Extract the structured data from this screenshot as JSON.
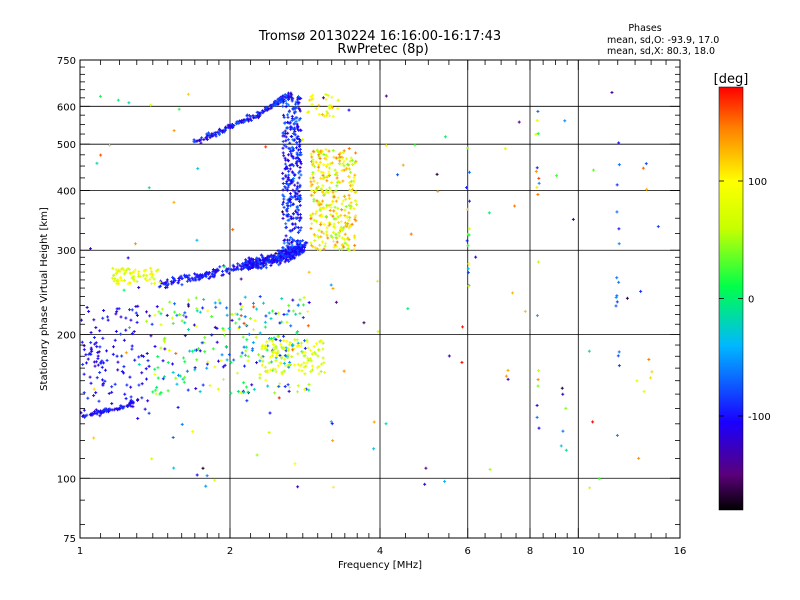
{
  "chart_data": {
    "type": "scatter",
    "title": "Tromsø 20130224 16:16:00-16:17:43",
    "subtitle": "RwPretec (8p)",
    "xlabel": "Frequency [MHz]",
    "ylabel": "Stationary phase Virtual Height [km]",
    "x_scale": "log",
    "y_scale": "log",
    "xlim": [
      1,
      16
    ],
    "ylim": [
      75,
      750
    ],
    "x_tick_labels": [
      "1",
      "2",
      "4",
      "6",
      "8",
      "10",
      "16"
    ],
    "x_ticks": [
      1,
      2,
      4,
      6,
      8,
      10,
      16
    ],
    "y_tick_labels": [
      "75",
      "100",
      "200",
      "300",
      "400",
      "500",
      "600",
      "750"
    ],
    "y_ticks": [
      75,
      100,
      200,
      300,
      400,
      500,
      600,
      750
    ],
    "x_minor_ticks": [
      1.1,
      1.2,
      1.3,
      1.4,
      1.5,
      1.6,
      1.7,
      1.8,
      1.9,
      2.2,
      2.4,
      2.6,
      2.8,
      3,
      3.2,
      3.4,
      3.6,
      3.8,
      4.5,
      5,
      5.5,
      6.5,
      7,
      7.5,
      8.5,
      9,
      9.5,
      11,
      12,
      13,
      14,
      15
    ],
    "y_minor_ticks": [
      80,
      90,
      110,
      120,
      130,
      140,
      150,
      160,
      170,
      180,
      190,
      210,
      220,
      230,
      240,
      250,
      260,
      270,
      280,
      290,
      325,
      350,
      375,
      425,
      450,
      475,
      525,
      550,
      575,
      625,
      650,
      675,
      700,
      725
    ],
    "grid": true,
    "grid_x": [
      2,
      4,
      6,
      8,
      10
    ],
    "grid_y": [
      100,
      200,
      300,
      400,
      500,
      600
    ],
    "stats": {
      "header": "Phases",
      "line1": "mean, sd,O: -93.9, 17.0",
      "line2": "mean, sd,X:  80.3, 18.0"
    },
    "colorbar": {
      "label": "[deg]",
      "range": [
        -180,
        180
      ],
      "tick_values": [
        -100,
        0,
        100
      ],
      "tick_labels": [
        "-100",
        "0",
        "100"
      ],
      "colormap": [
        "#000000",
        "#5a007a",
        "#1a00ff",
        "#00b8ff",
        "#00ff4a",
        "#c8ff00",
        "#ffff00",
        "#ff8000",
        "#ff0000"
      ],
      "colormap_stops": [
        -180,
        -150,
        -105,
        -40,
        10,
        60,
        100,
        145,
        180
      ]
    },
    "series": [
      {
        "region": "o-mode F2 trace",
        "mode": "curve",
        "x": [
          2.15,
          2.3,
          2.5,
          2.62,
          2.72,
          2.8
        ],
        "y": [
          280,
          283,
          290,
          295,
          300,
          305
        ],
        "x_spread": 0.03,
        "y_spread": 0.04,
        "count": 420,
        "phase_range": [
          -120,
          -75
        ]
      },
      {
        "region": "o-mode steep trace",
        "mode": "box",
        "xlim": [
          2.55,
          2.78
        ],
        "ylim": [
          300,
          630
        ],
        "count": 320,
        "phase_range": [
          -125,
          -60
        ]
      },
      {
        "region": "o-mode low F trace",
        "mode": "curve",
        "x": [
          1.45,
          1.65,
          1.85,
          2.05,
          2.25
        ],
        "y": [
          255,
          262,
          268,
          276,
          282
        ],
        "x_spread": 0.03,
        "y_spread": 0.03,
        "count": 160,
        "phase_range": [
          -120,
          -80
        ]
      },
      {
        "region": "o-mode top arc",
        "mode": "curve",
        "x": [
          1.7,
          1.9,
          2.1,
          2.3,
          2.5,
          2.65
        ],
        "y": [
          505,
          530,
          555,
          580,
          615,
          635
        ],
        "x_spread": 0.02,
        "y_spread": 0.02,
        "count": 190,
        "phase_range": [
          -125,
          -70
        ]
      },
      {
        "region": "x-mode trace",
        "mode": "box",
        "xlim": [
          2.9,
          3.6
        ],
        "ylim": [
          300,
          490
        ],
        "count": 320,
        "phase_range": [
          40,
          150
        ]
      },
      {
        "region": "x-mode top",
        "mode": "box",
        "xlim": [
          2.85,
          3.3
        ],
        "ylim": [
          570,
          640
        ],
        "count": 30,
        "phase_range": [
          60,
          130
        ]
      },
      {
        "region": "low scatter O",
        "mode": "box",
        "xlim": [
          1.0,
          1.4
        ],
        "ylim": [
          135,
          230
        ],
        "count": 140,
        "phase_range": [
          -125,
          -85
        ]
      },
      {
        "region": "low trace O",
        "mode": "curve",
        "x": [
          1.02,
          1.1,
          1.2,
          1.3
        ],
        "y": [
          135,
          138,
          140,
          145
        ],
        "x_spread": 0.02,
        "y_spread": 0.015,
        "count": 60,
        "phase_range": [
          -120,
          -85
        ]
      },
      {
        "region": "E-F scatter mixed",
        "mode": "box",
        "xlim": [
          1.4,
          2.9
        ],
        "ylim": [
          150,
          240
        ],
        "count": 260,
        "phase_range": [
          -120,
          100
        ]
      },
      {
        "region": "x-mode low",
        "mode": "box",
        "xlim": [
          2.3,
          3.1
        ],
        "ylim": [
          165,
          195
        ],
        "count": 110,
        "phase_range": [
          50,
          110
        ]
      },
      {
        "region": "x low band",
        "mode": "box",
        "xlim": [
          1.15,
          1.45
        ],
        "ylim": [
          255,
          275
        ],
        "count": 70,
        "phase_range": [
          60,
          110
        ]
      },
      {
        "region": "sparse noise",
        "mode": "box",
        "xlim": [
          1.0,
          14.5
        ],
        "ylim": [
          95,
          650
        ],
        "count": 140,
        "phase_range": [
          -180,
          180
        ]
      },
      {
        "region": "vertical line 6",
        "mode": "box",
        "xlim": [
          5.95,
          6.05
        ],
        "ylim": [
          250,
          520
        ],
        "count": 15,
        "phase_range": [
          -100,
          150
        ]
      },
      {
        "region": "vertical line 8.3",
        "mode": "box",
        "xlim": [
          8.2,
          8.35
        ],
        "ylim": [
          105,
          600
        ],
        "count": 16,
        "phase_range": [
          -120,
          170
        ]
      },
      {
        "region": "vertical line 12",
        "mode": "box",
        "xlim": [
          11.9,
          12.1
        ],
        "ylim": [
          110,
          630
        ],
        "count": 16,
        "phase_range": [
          -100,
          -40
        ]
      }
    ]
  }
}
